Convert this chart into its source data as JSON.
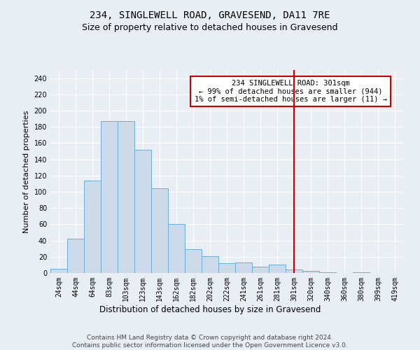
{
  "title": "234, SINGLEWELL ROAD, GRAVESEND, DA11 7RE",
  "subtitle": "Size of property relative to detached houses in Gravesend",
  "xlabel": "Distribution of detached houses by size in Gravesend",
  "ylabel": "Number of detached properties",
  "categories": [
    "24sqm",
    "44sqm",
    "64sqm",
    "83sqm",
    "103sqm",
    "123sqm",
    "143sqm",
    "162sqm",
    "182sqm",
    "202sqm",
    "222sqm",
    "241sqm",
    "261sqm",
    "281sqm",
    "301sqm",
    "320sqm",
    "340sqm",
    "360sqm",
    "380sqm",
    "399sqm",
    "419sqm"
  ],
  "values": [
    5,
    42,
    114,
    187,
    187,
    152,
    104,
    60,
    29,
    21,
    12,
    13,
    8,
    10,
    4,
    3,
    1,
    0,
    1,
    0,
    0
  ],
  "bar_color": "#ccdaea",
  "bar_edge_color": "#6baed6",
  "vline_x_index": 14,
  "vline_color": "#cc0000",
  "annotation_text": "234 SINGLEWELL ROAD: 301sqm\n← 99% of detached houses are smaller (944)\n1% of semi-detached houses are larger (11) →",
  "annotation_box_color": "#ffffff",
  "annotation_box_edge_color": "#cc0000",
  "ylim": [
    0,
    250
  ],
  "yticks": [
    0,
    20,
    40,
    60,
    80,
    100,
    120,
    140,
    160,
    180,
    200,
    220,
    240
  ],
  "bg_color": "#e8eef4",
  "grid_color": "#ffffff",
  "footer_text": "Contains HM Land Registry data © Crown copyright and database right 2024.\nContains public sector information licensed under the Open Government Licence v3.0.",
  "title_fontsize": 10,
  "subtitle_fontsize": 9,
  "xlabel_fontsize": 8.5,
  "ylabel_fontsize": 8,
  "tick_fontsize": 7,
  "annotation_fontsize": 7.5,
  "footer_fontsize": 6.5
}
